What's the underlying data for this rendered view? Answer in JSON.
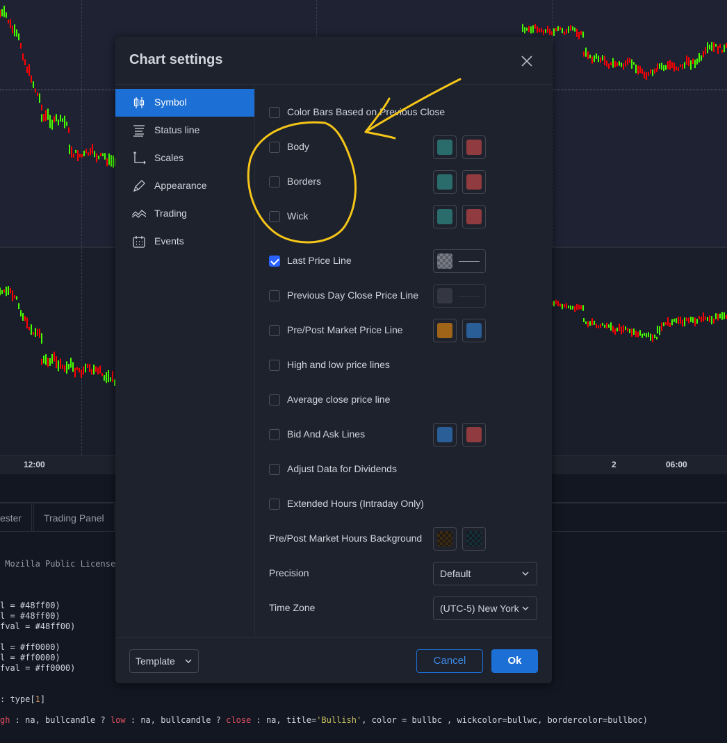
{
  "time_axis": {
    "labels": [
      "12:00",
      "2",
      "06:00"
    ]
  },
  "bottom_panel": {
    "tabs": [
      "ester",
      "Trading Panel"
    ],
    "code_lines": [
      {
        "parts": [
          {
            "t": " Mozilla Public License",
            "c": "dim"
          }
        ]
      },
      {
        "parts": []
      },
      {
        "parts": []
      },
      {
        "parts": []
      },
      {
        "parts": [
          {
            "t": "l = #48ff00)",
            "c": ""
          }
        ]
      },
      {
        "parts": [
          {
            "t": "l = #48ff00)",
            "c": ""
          }
        ]
      },
      {
        "parts": [
          {
            "t": "fval = #48ff00)",
            "c": ""
          }
        ]
      },
      {
        "parts": []
      },
      {
        "parts": [
          {
            "t": "l = #ff0000)",
            "c": ""
          }
        ]
      },
      {
        "parts": [
          {
            "t": "l = #ff0000)",
            "c": ""
          }
        ]
      },
      {
        "parts": [
          {
            "t": "fval = #ff0000)",
            "c": ""
          }
        ]
      },
      {
        "parts": []
      },
      {
        "parts": []
      },
      {
        "parts": [
          {
            "t": ": type[",
            "c": ""
          },
          {
            "t": "1",
            "c": "num"
          },
          {
            "t": "]",
            "c": ""
          }
        ]
      },
      {
        "parts": []
      },
      {
        "parts": [
          {
            "t": "gh",
            "c": "kw"
          },
          {
            "t": " : na, bullcandle ? ",
            "c": ""
          },
          {
            "t": "low",
            "c": "kw"
          },
          {
            "t": " : na, bullcandle ? ",
            "c": ""
          },
          {
            "t": "close",
            "c": "kw"
          },
          {
            "t": " : na, title=",
            "c": ""
          },
          {
            "t": "'Bullish'",
            "c": "str"
          },
          {
            "t": ", color = bullbc , wickcolor=bullwc, bordercolor=bullboc)",
            "c": ""
          }
        ]
      }
    ]
  },
  "dialog": {
    "title": "Chart settings",
    "sidebar": [
      {
        "label": "Symbol",
        "icon": "candles-icon",
        "active": true
      },
      {
        "label": "Status line",
        "icon": "status-line-icon",
        "active": false
      },
      {
        "label": "Scales",
        "icon": "scales-icon",
        "active": false
      },
      {
        "label": "Appearance",
        "icon": "pencil-icon",
        "active": false
      },
      {
        "label": "Trading",
        "icon": "trading-icon",
        "active": false
      },
      {
        "label": "Events",
        "icon": "calendar-icon",
        "active": false
      }
    ],
    "options": {
      "color_bars": {
        "label": "Color Bars Based on Previous Close",
        "checked": false
      },
      "body": {
        "label": "Body",
        "checked": false,
        "colors": [
          "#2a6b6b",
          "#8f3b3f"
        ]
      },
      "borders": {
        "label": "Borders",
        "checked": false,
        "colors": [
          "#2a6b6b",
          "#8f3b3f"
        ]
      },
      "wick": {
        "label": "Wick",
        "checked": false,
        "colors": [
          "#2a6b6b",
          "#8f3b3f"
        ]
      },
      "last_price_line": {
        "label": "Last Price Line",
        "checked": true
      },
      "prev_day_close": {
        "label": "Previous Day Close Price Line",
        "checked": false,
        "color": "#434651"
      },
      "pre_post_price": {
        "label": "Pre/Post Market Price Line",
        "checked": false,
        "colors": [
          "#a06418",
          "#2a5e96"
        ]
      },
      "high_low": {
        "label": "High and low price lines",
        "checked": false
      },
      "avg_close": {
        "label": "Average close price line",
        "checked": false
      },
      "bid_ask": {
        "label": "Bid And Ask Lines",
        "checked": false,
        "colors": [
          "#2a5e96",
          "#8f3b3f"
        ]
      },
      "adjust_dividends": {
        "label": "Adjust Data for Dividends",
        "checked": false
      },
      "extended_hours": {
        "label": "Extended Hours (Intraday Only)",
        "checked": false
      },
      "pre_post_bg": {
        "label": "Pre/Post Market Hours Background"
      },
      "precision": {
        "label": "Precision",
        "value": "Default"
      },
      "timezone": {
        "label": "Time Zone",
        "value": "(UTC-5) New York"
      }
    },
    "footer": {
      "template": "Template",
      "cancel": "Cancel",
      "ok": "Ok"
    }
  },
  "colors": {
    "accent": "#1c6fd4",
    "annotation": "#f5c518",
    "bull": "#48ff00",
    "bear": "#ff0000"
  }
}
